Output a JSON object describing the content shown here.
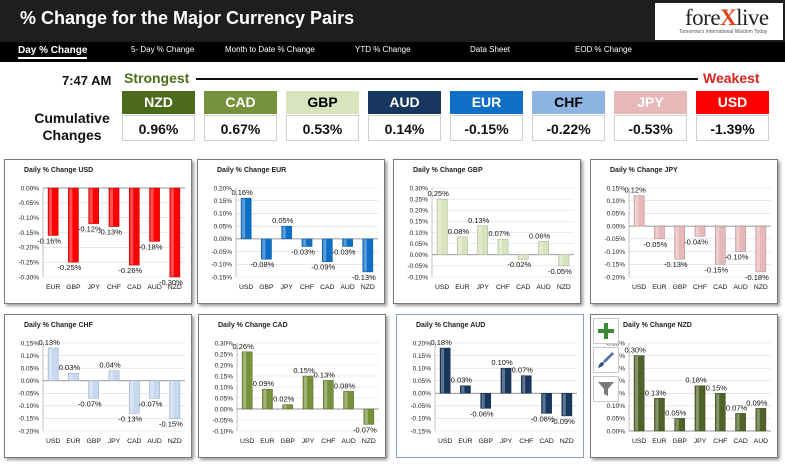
{
  "header": {
    "title": "% Change for the Major Currency Pairs",
    "logo_main": "fore",
    "logo_x": "X",
    "logo_end": "live",
    "logo_tagline": "Tomorrow's International Wisdom Today"
  },
  "nav": [
    "Day % Change",
    "5- Day % Change",
    "Month to Date % Change",
    "YTD % Change",
    "Data Sheet",
    "EOD % Change"
  ],
  "time": "7:47 AM",
  "strongest_label": "Strongest",
  "weakest_label": "Weakest",
  "cumulative_label_1": "Cumulative",
  "cumulative_label_2": "Changes",
  "currencies": [
    {
      "code": "NZD",
      "value": "0.96%",
      "bg": "#4b6a1c",
      "fg": "#ffffff"
    },
    {
      "code": "CAD",
      "value": "0.67%",
      "bg": "#76923c",
      "fg": "#ffffff"
    },
    {
      "code": "GBP",
      "value": "0.53%",
      "bg": "#d7e4bd",
      "fg": "#000000"
    },
    {
      "code": "AUD",
      "value": "0.14%",
      "bg": "#17375e",
      "fg": "#ffffff"
    },
    {
      "code": "EUR",
      "value": "-0.15%",
      "bg": "#0f6fc6",
      "fg": "#ffffff"
    },
    {
      "code": "CHF",
      "value": "-0.22%",
      "bg": "#8db4e2",
      "fg": "#000000"
    },
    {
      "code": "JPY",
      "value": "-0.53%",
      "bg": "#e6b9b8",
      "fg": "#ffffff"
    },
    {
      "code": "USD",
      "value": "-1.39%",
      "bg": "#ff0000",
      "fg": "#ffffff"
    }
  ],
  "colors": {
    "USD": "#ff0000",
    "EUR": "#0f6fc6",
    "GBP": "#d7e4bd",
    "JPY": "#e6b9b8",
    "CHF": "#c6d9f1",
    "CAD": "#76923c",
    "AUD": "#17375e",
    "NZD": "#4f6228"
  },
  "tool_icons": [
    "plus-icon",
    "brush-icon",
    "filter-icon"
  ],
  "chart_data": [
    {
      "type": "bar",
      "title": "Daily % Change USD",
      "currency": "USD",
      "categories": [
        "EUR",
        "GBP",
        "JPY",
        "CHF",
        "CAD",
        "AUD",
        "NZD"
      ],
      "values": [
        -0.16,
        -0.25,
        -0.12,
        -0.13,
        -0.26,
        -0.18,
        -0.3
      ],
      "labels": [
        "-0.16%",
        "-0.25%",
        "-0.12%",
        "-0.13%",
        "-0.26%",
        "-0.18%",
        "-0.30%"
      ],
      "ylim": [
        -0.3,
        0
      ],
      "ticks": [
        "0.00%",
        "-0.05%",
        "-0.10%",
        "-0.15%",
        "-0.20%",
        "-0.25%",
        "-0.30%"
      ]
    },
    {
      "type": "bar",
      "title": "Daily % Change EUR",
      "currency": "EUR",
      "categories": [
        "USD",
        "GBP",
        "JPY",
        "CHF",
        "CAD",
        "AUD",
        "NZD"
      ],
      "values": [
        0.16,
        -0.08,
        0.05,
        -0.03,
        -0.09,
        -0.03,
        -0.13
      ],
      "labels": [
        "0.16%",
        "-0.08%",
        "0.05%",
        "-0.03%",
        "-0.09%",
        "-0.03%",
        "-0.13%"
      ],
      "ylim": [
        -0.15,
        0.2
      ],
      "ticks": [
        "0.20%",
        "0.15%",
        "0.10%",
        "0.05%",
        "0.00%",
        "-0.05%",
        "-0.10%",
        "-0.15%"
      ]
    },
    {
      "type": "bar",
      "title": "Daily % Change GBP",
      "currency": "GBP",
      "categories": [
        "USD",
        "EUR",
        "JPY",
        "CHF",
        "CAD",
        "AUD",
        "NZD"
      ],
      "values": [
        0.25,
        0.08,
        0.13,
        0.07,
        -0.02,
        0.06,
        -0.05
      ],
      "labels": [
        "0.25%",
        "0.08%",
        "0.13%",
        "0.07%",
        "-0.02%",
        "0.06%",
        "-0.05%"
      ],
      "ylim": [
        -0.1,
        0.3
      ],
      "ticks": [
        "0.30%",
        "0.25%",
        "0.20%",
        "0.15%",
        "0.10%",
        "0.05%",
        "0.00%",
        "-0.05%",
        "-0.10%"
      ]
    },
    {
      "type": "bar",
      "title": "Daily % Change JPY",
      "currency": "JPY",
      "categories": [
        "USD",
        "EUR",
        "GBP",
        "CHF",
        "CAD",
        "AUD",
        "NZD"
      ],
      "values": [
        0.12,
        -0.05,
        -0.13,
        -0.04,
        -0.15,
        -0.1,
        -0.18
      ],
      "labels": [
        "0.12%",
        "-0.05%",
        "-0.13%",
        "-0.04%",
        "-0.15%",
        "-0.10%",
        "-0.18%"
      ],
      "ylim": [
        -0.2,
        0.15
      ],
      "ticks": [
        "0.15%",
        "0.10%",
        "0.05%",
        "0.00%",
        "-0.05%",
        "-0.10%",
        "-0.15%",
        "-0.20%"
      ]
    },
    {
      "type": "bar",
      "title": "Daily % Change CHF",
      "currency": "CHF",
      "categories": [
        "USD",
        "EUR",
        "GBP",
        "JPY",
        "CAD",
        "AUD",
        "NZD"
      ],
      "values": [
        0.13,
        0.03,
        -0.07,
        0.04,
        -0.13,
        -0.07,
        -0.15
      ],
      "labels": [
        "0.13%",
        "0.03%",
        "-0.07%",
        "0.04%",
        "-0.13%",
        "-0.07%",
        "-0.15%"
      ],
      "ylim": [
        -0.2,
        0.15
      ],
      "ticks": [
        "0.15%",
        "0.10%",
        "0.05%",
        "0.00%",
        "-0.05%",
        "-0.10%",
        "-0.15%",
        "-0.20%"
      ]
    },
    {
      "type": "bar",
      "title": "Daily % Change CAD",
      "currency": "CAD",
      "categories": [
        "USD",
        "EUR",
        "GBP",
        "JPY",
        "CHF",
        "AUD",
        "NZD"
      ],
      "values": [
        0.26,
        0.09,
        0.02,
        0.15,
        0.13,
        0.08,
        -0.07
      ],
      "labels": [
        "0.26%",
        "0.09%",
        "0.02%",
        "0.15%",
        "0.13%",
        "0.08%",
        "-0.07%"
      ],
      "ylim": [
        -0.1,
        0.3
      ],
      "ticks": [
        "0.30%",
        "0.25%",
        "0.20%",
        "0.15%",
        "0.10%",
        "0.05%",
        "0.00%",
        "-0.05%",
        "-0.10%"
      ]
    },
    {
      "type": "bar",
      "title": "Daily % Change AUD",
      "currency": "AUD",
      "categories": [
        "USD",
        "EUR",
        "GBP",
        "JPY",
        "CHF",
        "CAD",
        "NZD"
      ],
      "values": [
        0.18,
        0.03,
        -0.06,
        0.1,
        0.07,
        -0.08,
        -0.09
      ],
      "labels": [
        "0.18%",
        "0.03%",
        "-0.06%",
        "0.10%",
        "0.07%",
        "-0.08%",
        "-0.09%"
      ],
      "ylim": [
        -0.15,
        0.2
      ],
      "ticks": [
        "0.20%",
        "0.15%",
        "0.10%",
        "0.05%",
        "0.00%",
        "-0.05%",
        "-0.10%",
        "-0.15%"
      ]
    },
    {
      "type": "bar",
      "title": "Daily % Change NZD",
      "currency": "NZD",
      "categories": [
        "USD",
        "EUR",
        "GBP",
        "JPY",
        "CHF",
        "CAD",
        "AUD"
      ],
      "values": [
        0.3,
        0.13,
        0.05,
        0.18,
        0.15,
        0.07,
        0.09
      ],
      "labels": [
        "0.30%",
        "0.13%",
        "0.05%",
        "0.18%",
        "0.15%",
        "0.07%",
        "0.09%"
      ],
      "ylim": [
        0,
        0.35
      ],
      "ticks": [
        "0.35%",
        "0.30%",
        "0.25%",
        "0.20%",
        "0.15%",
        "0.10%",
        "0.05%",
        "0.00%"
      ]
    }
  ]
}
